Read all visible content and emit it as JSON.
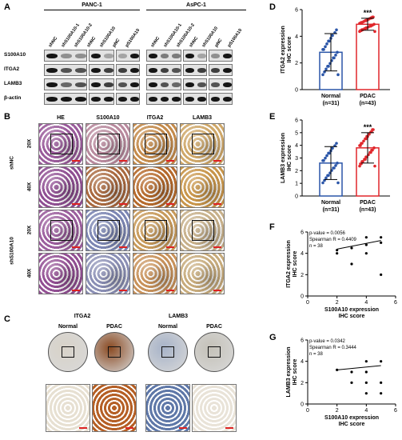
{
  "panel_labels": {
    "a": "A",
    "b": "B",
    "c": "C",
    "d": "D",
    "e": "E",
    "f": "F",
    "g": "G"
  },
  "blot": {
    "groups": [
      "PANC-1",
      "AsPC-1"
    ],
    "lanes": [
      "shNC",
      "shS100A10-1",
      "shS100A10-2",
      "shNC",
      "shS100A10",
      "pNC",
      "pS100A10",
      "shNC",
      "shS100A10-1",
      "shS100A10-2",
      "shNC",
      "shS100A10",
      "pNC",
      "pS100A10"
    ],
    "rows": [
      "S100A10",
      "ITGA2",
      "LAMB3",
      "β-actin"
    ]
  },
  "ihc_b": {
    "columns": [
      "HE",
      "S100A10",
      "ITGA2",
      "LAMB3"
    ],
    "groups": [
      "shNC",
      "shS100A10"
    ],
    "mags": [
      "20X",
      "40X",
      "20X",
      "40X"
    ]
  },
  "ihc_c": {
    "titles": [
      "ITGA2",
      "LAMB3"
    ],
    "cols": [
      "Normal",
      "PDAC",
      "Normal",
      "PDAC"
    ]
  },
  "colors": {
    "normal": "#2a55a8",
    "pdac": "#e0262b"
  },
  "chart_data": [
    {
      "type": "bar",
      "panel": "D",
      "ylabel": "ITGA2 expression\nIHC score",
      "categories": [
        "Normal\n(n=31)",
        "PDAC\n(n=43)"
      ],
      "values": [
        2.8,
        4.9
      ],
      "errors": [
        1.4,
        0.45
      ],
      "significance": "***",
      "ylim": [
        0,
        6
      ],
      "yticks": [
        0,
        2,
        4,
        6
      ]
    },
    {
      "type": "bar",
      "panel": "E",
      "ylabel": "LAMB3 expression\nIHC score",
      "categories": [
        "Normal\n(n=31)",
        "PDAC\n(n=43)"
      ],
      "values": [
        2.6,
        3.8
      ],
      "errors": [
        1.3,
        1.2
      ],
      "significance": "***",
      "ylim": [
        0,
        6
      ],
      "yticks": [
        0,
        1,
        2,
        3,
        4,
        5,
        6
      ]
    },
    {
      "type": "scatter",
      "panel": "F",
      "xlabel": "S100A10 expression\nIHC score",
      "ylabel": "ITGA2 expression\nIHC score",
      "annotations": [
        "p-value = 0.0056",
        "Spearman R = 0.4409",
        "n = 38"
      ],
      "x": [
        2,
        2,
        3,
        3,
        4,
        4,
        4,
        5,
        5,
        5
      ],
      "y": [
        4,
        4.3,
        3,
        4.5,
        4,
        4.8,
        5.5,
        5,
        5.5,
        2
      ],
      "fit": [
        [
          2,
          4.4
        ],
        [
          5,
          5.2
        ]
      ],
      "xlim": [
        0,
        6
      ],
      "ylim": [
        0,
        6
      ],
      "xticks": [
        0,
        2,
        4,
        6
      ],
      "yticks": [
        0,
        2,
        4,
        6
      ]
    },
    {
      "type": "scatter",
      "panel": "G",
      "xlabel": "S100A10 expression\nIHC score",
      "ylabel": "LAMB3 expression\nIHC score",
      "annotations": [
        "p-value = 0.0342",
        "Spearman R = 0.3444",
        "n = 38"
      ],
      "x": [
        2,
        3,
        3,
        4,
        4,
        4,
        4,
        5,
        5,
        5
      ],
      "y": [
        3.2,
        3,
        2,
        4,
        3,
        2,
        1,
        4,
        2,
        1
      ],
      "fit": [
        [
          2,
          3.2
        ],
        [
          5,
          3.6
        ]
      ],
      "xlim": [
        0,
        6
      ],
      "ylim": [
        0,
        6
      ],
      "xticks": [
        0,
        2,
        4,
        6
      ],
      "yticks": [
        0,
        2,
        4,
        6
      ]
    }
  ]
}
